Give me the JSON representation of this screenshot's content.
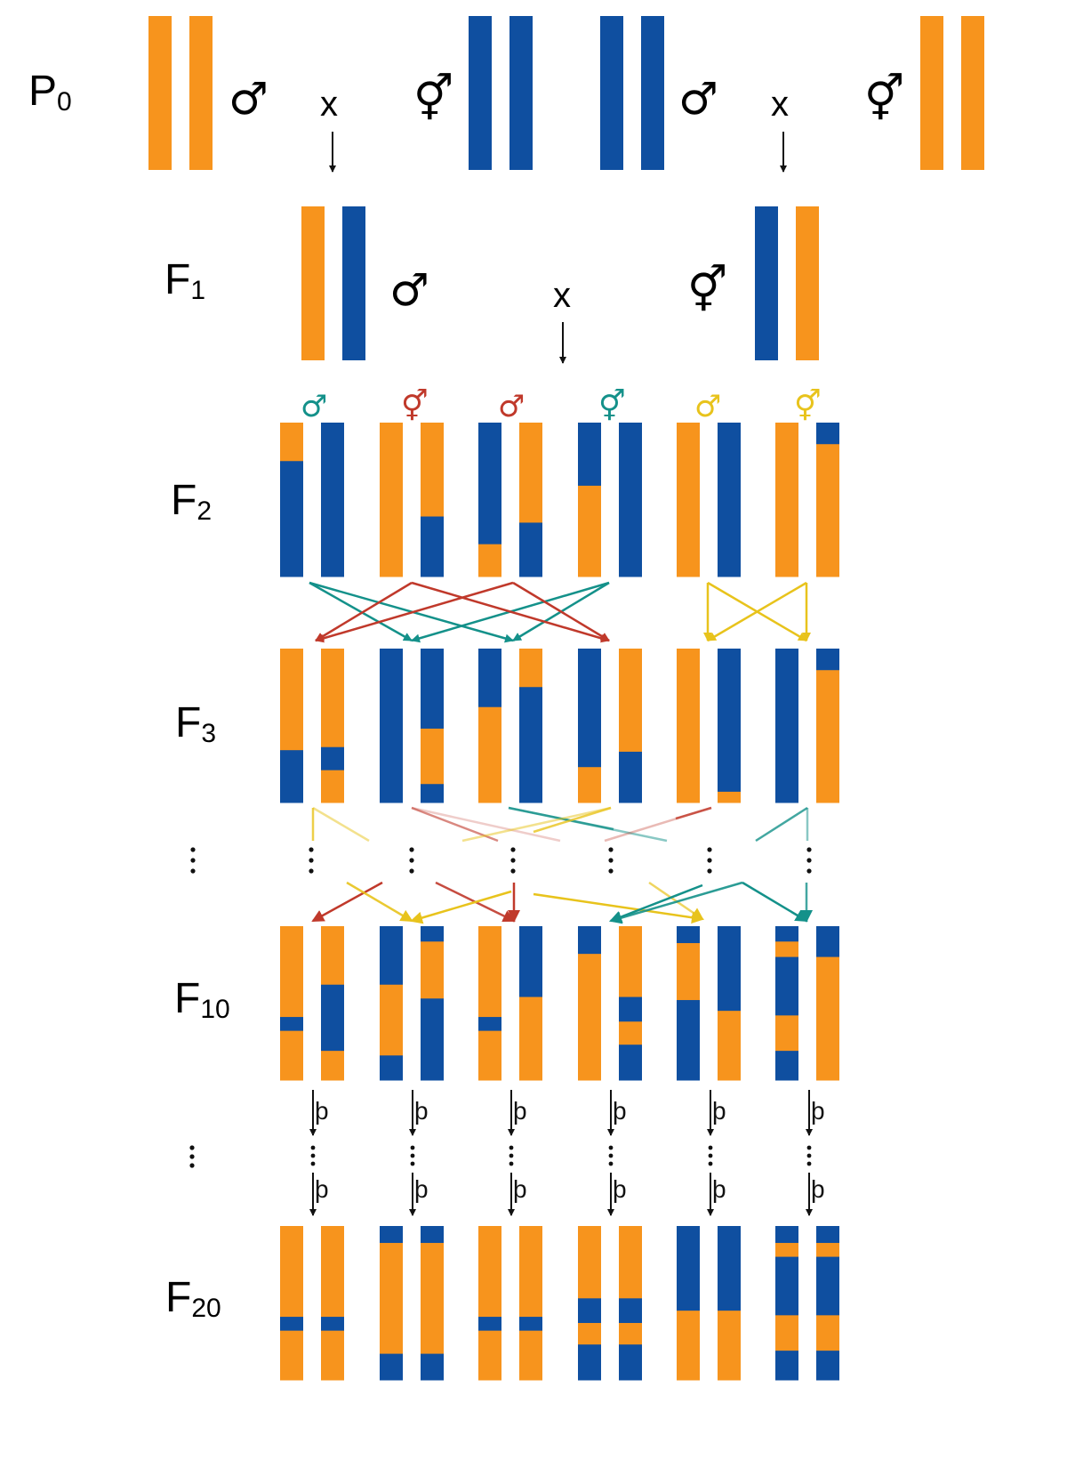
{
  "colors": {
    "orange": "#F7941D",
    "blue": "#0F4FA0",
    "red": "#C0392B",
    "teal": "#14918A",
    "yellow": "#E8C31C",
    "black": "#111111"
  },
  "symbols": {
    "male": "♂",
    "hermaphrodite": "⚥",
    "cross": "x",
    "self": "þ",
    "continue": "⋮"
  },
  "generations": {
    "p0": {
      "label": "P",
      "sub": "0"
    },
    "f1": {
      "label": "F",
      "sub": "1"
    },
    "f2": {
      "label": "F",
      "sub": "2"
    },
    "f3": {
      "label": "F",
      "sub": "3"
    },
    "f10": {
      "label": "F",
      "sub": "10"
    },
    "f20": {
      "label": "F",
      "sub": "20"
    }
  },
  "p0_crosses": [
    {
      "male": "orange",
      "female": "blue"
    },
    {
      "male": "blue",
      "female": "orange"
    }
  ],
  "f1_cross": {
    "male": [
      "orange",
      "blue"
    ],
    "female": [
      "blue",
      "orange"
    ]
  },
  "f2_parent_sexes": [
    {
      "symbol": "male",
      "color": "teal"
    },
    {
      "symbol": "hermaphrodite",
      "color": "red"
    },
    {
      "symbol": "male",
      "color": "red"
    },
    {
      "symbol": "hermaphrodite",
      "color": "teal"
    },
    {
      "symbol": "male",
      "color": "yellow"
    },
    {
      "symbol": "hermaphrodite",
      "color": "yellow"
    }
  ],
  "chromosome_fractions": {
    "f2": [
      [
        [
          [
            "o",
            0.25
          ],
          [
            "b",
            1
          ]
        ],
        [
          [
            "b",
            1
          ]
        ]
      ],
      [
        [
          [
            "o",
            1
          ]
        ],
        [
          [
            "o",
            0.61
          ],
          [
            "b",
            1
          ]
        ]
      ],
      [
        [
          [
            "b",
            0.79
          ],
          [
            "o",
            1
          ]
        ],
        [
          [
            "o",
            0.65
          ],
          [
            "b",
            1
          ]
        ]
      ],
      [
        [
          [
            "b",
            0.41
          ],
          [
            "o",
            1
          ]
        ],
        [
          [
            "b",
            1
          ]
        ]
      ],
      [
        [
          [
            "o",
            1
          ]
        ],
        [
          [
            "b",
            1
          ]
        ]
      ],
      [
        [
          [
            "o",
            1
          ]
        ],
        [
          [
            "b",
            0.14
          ],
          [
            "o",
            1
          ]
        ]
      ]
    ],
    "f3": [
      [
        [
          [
            "o",
            0.66
          ],
          [
            "b",
            1
          ]
        ],
        [
          [
            "o",
            0.64
          ],
          [
            "b",
            0.79
          ],
          [
            "o",
            1
          ]
        ]
      ],
      [
        [
          [
            "b",
            1
          ]
        ],
        [
          [
            "b",
            0.52
          ],
          [
            "o",
            0.88
          ],
          [
            "b",
            1
          ]
        ]
      ],
      [
        [
          [
            "b",
            0.38
          ],
          [
            "o",
            1
          ]
        ],
        [
          [
            "o",
            0.25
          ],
          [
            "b",
            1
          ]
        ]
      ],
      [
        [
          [
            "b",
            0.77
          ],
          [
            "o",
            1
          ]
        ],
        [
          [
            "o",
            0.67
          ],
          [
            "b",
            1
          ]
        ]
      ],
      [
        [
          [
            "o",
            1
          ]
        ],
        [
          [
            "b",
            0.93
          ],
          [
            "o",
            1
          ]
        ]
      ],
      [
        [
          [
            "b",
            1
          ]
        ],
        [
          [
            "b",
            0.14
          ],
          [
            "o",
            1
          ]
        ]
      ]
    ],
    "f10": [
      [
        [
          [
            "o",
            0.59
          ],
          [
            "b",
            0.68
          ],
          [
            "o",
            1
          ]
        ],
        [
          [
            "o",
            0.38
          ],
          [
            "b",
            0.81
          ],
          [
            "o",
            1
          ]
        ]
      ],
      [
        [
          [
            "b",
            0.38
          ],
          [
            "o",
            0.84
          ],
          [
            "b",
            1
          ]
        ],
        [
          [
            "b",
            0.1
          ],
          [
            "o",
            0.47
          ],
          [
            "b",
            1
          ]
        ]
      ],
      [
        [
          [
            "o",
            0.59
          ],
          [
            "b",
            0.68
          ],
          [
            "o",
            1
          ]
        ],
        [
          [
            "b",
            0.46
          ],
          [
            "o",
            1
          ]
        ]
      ],
      [
        [
          [
            "b",
            0.18
          ],
          [
            "o",
            1
          ]
        ],
        [
          [
            "o",
            0.46
          ],
          [
            "b",
            0.62
          ],
          [
            "o",
            0.77
          ],
          [
            "b",
            1
          ]
        ]
      ],
      [
        [
          [
            "b",
            0.11
          ],
          [
            "o",
            0.48
          ],
          [
            "b",
            1
          ]
        ],
        [
          [
            "b",
            0.55
          ],
          [
            "o",
            1
          ]
        ]
      ],
      [
        [
          [
            "b",
            0.1
          ],
          [
            "o",
            0.2
          ],
          [
            "b",
            0.58
          ],
          [
            "o",
            0.81
          ],
          [
            "b",
            1
          ]
        ],
        [
          [
            "b",
            0.2
          ],
          [
            "o",
            1
          ]
        ]
      ]
    ],
    "f20": [
      [
        [
          [
            "o",
            0.59
          ],
          [
            "b",
            0.68
          ],
          [
            "o",
            1
          ]
        ],
        [
          [
            "o",
            0.59
          ],
          [
            "b",
            0.68
          ],
          [
            "o",
            1
          ]
        ]
      ],
      [
        [
          [
            "b",
            0.11
          ],
          [
            "o",
            0.83
          ],
          [
            "b",
            1
          ]
        ],
        [
          [
            "b",
            0.11
          ],
          [
            "o",
            0.83
          ],
          [
            "b",
            1
          ]
        ]
      ],
      [
        [
          [
            "o",
            0.59
          ],
          [
            "b",
            0.68
          ],
          [
            "o",
            1
          ]
        ],
        [
          [
            "o",
            0.59
          ],
          [
            "b",
            0.68
          ],
          [
            "o",
            1
          ]
        ]
      ],
      [
        [
          [
            "o",
            0.47
          ],
          [
            "b",
            0.63
          ],
          [
            "o",
            0.77
          ],
          [
            "b",
            1
          ]
        ],
        [
          [
            "o",
            0.47
          ],
          [
            "b",
            0.63
          ],
          [
            "o",
            0.77
          ],
          [
            "b",
            1
          ]
        ]
      ],
      [
        [
          [
            "b",
            0.55
          ],
          [
            "o",
            1
          ]
        ],
        [
          [
            "b",
            0.55
          ],
          [
            "o",
            1
          ]
        ]
      ],
      [
        [
          [
            "b",
            0.11
          ],
          [
            "o",
            0.2
          ],
          [
            "b",
            0.58
          ],
          [
            "o",
            0.81
          ],
          [
            "b",
            1
          ]
        ],
        [
          [
            "b",
            0.11
          ],
          [
            "o",
            0.2
          ],
          [
            "b",
            0.58
          ],
          [
            "o",
            0.81
          ],
          [
            "b",
            1
          ]
        ]
      ]
    ]
  }
}
